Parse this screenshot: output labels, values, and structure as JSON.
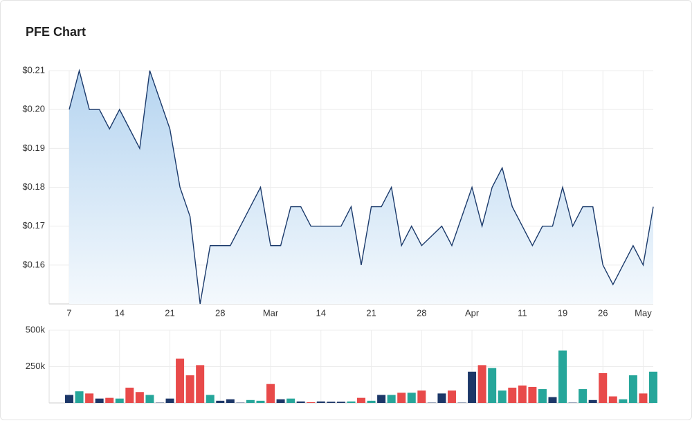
{
  "chart_data": [
    {
      "type": "area",
      "title": "PFE Chart",
      "categories": [
        "7",
        null,
        null,
        null,
        null,
        "14",
        null,
        null,
        null,
        null,
        "21",
        null,
        null,
        null,
        null,
        "28",
        null,
        null,
        null,
        null,
        "Mar",
        null,
        null,
        null,
        null,
        "14",
        null,
        null,
        null,
        null,
        "21",
        null,
        null,
        null,
        null,
        "28",
        null,
        null,
        null,
        null,
        "Apr",
        null,
        null,
        null,
        null,
        "11",
        null,
        null,
        null,
        "19",
        null,
        null,
        null,
        "26",
        null,
        null,
        null,
        "May",
        null
      ],
      "values": [
        0.2,
        0.21,
        0.2,
        0.2,
        0.195,
        0.2,
        0.195,
        0.19,
        0.21,
        0.2025,
        0.195,
        0.18,
        0.1725,
        0.15,
        0.165,
        0.165,
        0.165,
        0.17,
        0.175,
        0.18,
        0.165,
        0.165,
        0.175,
        0.175,
        0.17,
        0.17,
        0.17,
        0.17,
        0.175,
        0.16,
        0.175,
        0.175,
        0.18,
        0.165,
        0.17,
        0.165,
        0.1675,
        0.17,
        0.165,
        0.1725,
        0.18,
        0.17,
        0.18,
        0.185,
        0.175,
        0.17,
        0.165,
        0.17,
        0.17,
        0.18,
        0.17,
        0.175,
        0.175,
        0.16,
        0.155,
        0.16,
        0.165,
        0.16,
        0.175
      ],
      "color": "#1b3a6b",
      "ylim": [
        0.15,
        0.21
      ],
      "yticks": [
        {
          "value": 0.16,
          "label": "$0.16"
        },
        {
          "value": 0.17,
          "label": "$0.17"
        },
        {
          "value": 0.18,
          "label": "$0.18"
        },
        {
          "value": 0.19,
          "label": "$0.19"
        },
        {
          "value": 0.2,
          "label": "$0.20"
        },
        {
          "value": 0.21,
          "label": "$0.21"
        }
      ],
      "grid": true
    },
    {
      "type": "bar",
      "values": [
        55000,
        80000,
        65000,
        30000,
        35000,
        30000,
        105000,
        75000,
        55000,
        2000,
        30000,
        305000,
        190000,
        260000,
        55000,
        15000,
        25000,
        2000,
        20000,
        15000,
        130000,
        25000,
        30000,
        10000,
        5000,
        10000,
        8000,
        8000,
        10000,
        35000,
        15000,
        55000,
        55000,
        70000,
        70000,
        85000,
        2000,
        65000,
        85000,
        2000,
        215000,
        260000,
        240000,
        85000,
        105000,
        120000,
        110000,
        95000,
        40000,
        360000,
        2000,
        95000,
        20000,
        205000,
        45000,
        25000,
        190000,
        65000,
        215000
      ],
      "colors": [
        "#1c3768",
        "#26a69a",
        "#e84a4a",
        "#1c3768",
        "#e84a4a",
        "#26a69a",
        "#e84a4a",
        "#e84a4a",
        "#26a69a",
        "#1c3768",
        "#1c3768",
        "#e84a4a",
        "#e84a4a",
        "#e84a4a",
        "#26a69a",
        "#1c3768",
        "#1c3768",
        "#1c3768",
        "#26a69a",
        "#26a69a",
        "#e84a4a",
        "#1c3768",
        "#26a69a",
        "#1c3768",
        "#e84a4a",
        "#1c3768",
        "#1c3768",
        "#1c3768",
        "#26a69a",
        "#e84a4a",
        "#26a69a",
        "#1c3768",
        "#26a69a",
        "#e84a4a",
        "#26a69a",
        "#e84a4a",
        "#1c3768",
        "#1c3768",
        "#e84a4a",
        "#1c3768",
        "#1c3768",
        "#e84a4a",
        "#26a69a",
        "#26a69a",
        "#e84a4a",
        "#e84a4a",
        "#e84a4a",
        "#26a69a",
        "#1c3768",
        "#26a69a",
        "#1c3768",
        "#26a69a",
        "#1c3768",
        "#e84a4a",
        "#e84a4a",
        "#26a69a",
        "#26a69a",
        "#e84a4a",
        "#26a69a"
      ],
      "ylim": [
        0,
        500000
      ],
      "yticks": [
        {
          "value": 250000,
          "label": "250k"
        },
        {
          "value": 500000,
          "label": "500k"
        }
      ],
      "grid": true
    }
  ]
}
